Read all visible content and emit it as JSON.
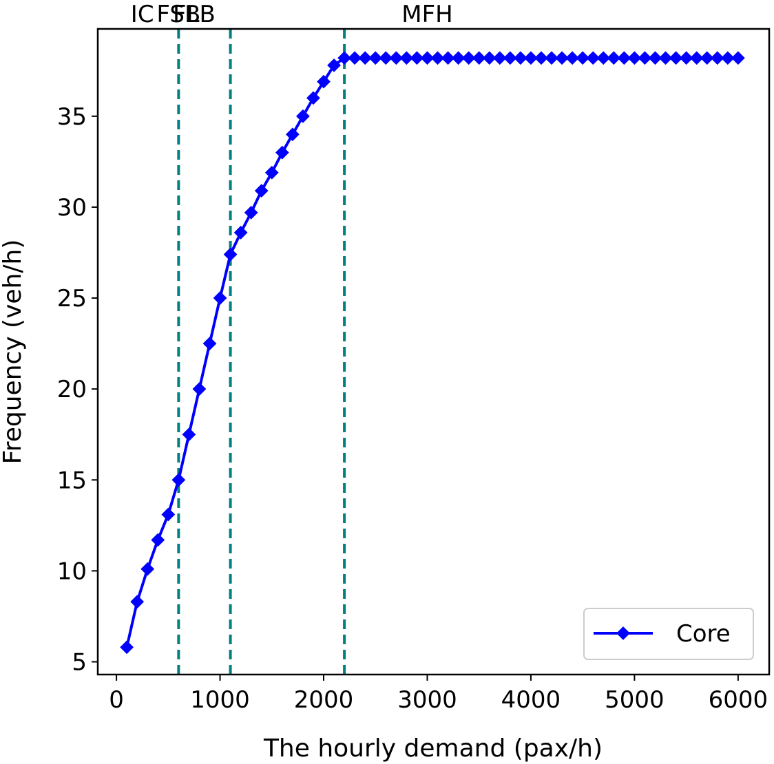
{
  "chart_data": {
    "type": "line",
    "title": "",
    "xlabel": "The hourly demand (pax/h)",
    "ylabel": "Frequency (veh/h)",
    "xlim": [
      -180,
      6300
    ],
    "ylim": [
      4.3,
      39.8
    ],
    "x_ticks": [
      0,
      1000,
      2000,
      3000,
      4000,
      5000,
      6000
    ],
    "y_ticks": [
      5,
      10,
      15,
      20,
      25,
      30,
      35
    ],
    "vlines": [
      600,
      1100,
      2200
    ],
    "regions": [
      {
        "label": "IC",
        "x": 250
      },
      {
        "label": "FSB",
        "x": 600
      },
      {
        "label": "FLB",
        "x": 750
      },
      {
        "label": "MFH",
        "x": 3000
      }
    ],
    "legend": {
      "position": "lower-right",
      "entries": [
        "Core"
      ]
    },
    "colors": {
      "series": "#0000ff",
      "vline": "#008080"
    },
    "series": [
      {
        "name": "Core",
        "x": [
          100,
          200,
          300,
          400,
          500,
          600,
          700,
          800,
          900,
          1000,
          1100,
          1200,
          1300,
          1400,
          1500,
          1600,
          1700,
          1800,
          1900,
          2000,
          2100,
          2200,
          2300,
          2400,
          2500,
          2600,
          2700,
          2800,
          2900,
          3000,
          3100,
          3200,
          3300,
          3400,
          3500,
          3600,
          3700,
          3800,
          3900,
          4000,
          4100,
          4200,
          4300,
          4400,
          4500,
          4600,
          4700,
          4800,
          4900,
          5000,
          5100,
          5200,
          5300,
          5400,
          5500,
          5600,
          5700,
          5800,
          5900,
          6000
        ],
        "y": [
          5.8,
          8.3,
          10.1,
          11.7,
          13.1,
          15.0,
          17.5,
          20.0,
          22.5,
          25.0,
          27.4,
          28.6,
          29.7,
          30.9,
          31.9,
          33.0,
          34.0,
          35.0,
          36.0,
          36.9,
          37.8,
          38.2,
          38.2,
          38.2,
          38.2,
          38.2,
          38.2,
          38.2,
          38.2,
          38.2,
          38.2,
          38.2,
          38.2,
          38.2,
          38.2,
          38.2,
          38.2,
          38.2,
          38.2,
          38.2,
          38.2,
          38.2,
          38.2,
          38.2,
          38.2,
          38.2,
          38.2,
          38.2,
          38.2,
          38.2,
          38.2,
          38.2,
          38.2,
          38.2,
          38.2,
          38.2,
          38.2,
          38.2,
          38.2,
          38.2
        ]
      }
    ]
  }
}
